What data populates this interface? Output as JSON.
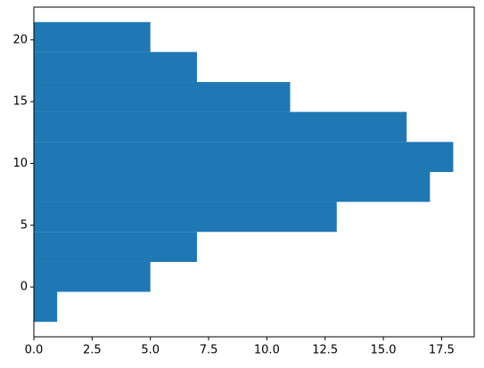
{
  "chart_data": {
    "type": "histogram",
    "orientation": "horizontal",
    "bins": [
      -2.82,
      -0.39,
      2.03,
      4.46,
      6.89,
      9.31,
      11.74,
      14.17,
      16.59,
      19.02,
      21.44
    ],
    "values": [
      1,
      5,
      7,
      13,
      17,
      18,
      16,
      11,
      7,
      5
    ],
    "color": "#1f77b4",
    "xlim": [
      0,
      18.9
    ],
    "xticks": [
      {
        "value": 0,
        "label": "0.0"
      },
      2.5,
      {
        "value": 5,
        "label": "5.0"
      },
      7.5,
      {
        "value": 10,
        "label": "10.0"
      },
      12.5,
      {
        "value": 15,
        "label": "15.0"
      },
      17.5
    ],
    "ylim": [
      -4.03,
      22.65
    ],
    "yticks": [
      0,
      5,
      10,
      15,
      20
    ],
    "grid": false
  }
}
